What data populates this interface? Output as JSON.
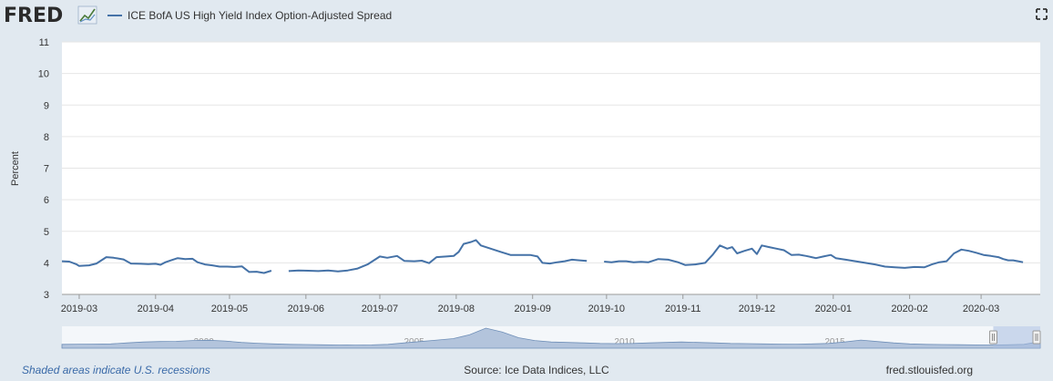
{
  "header": {
    "logo_text": "FRED",
    "legend_label": "ICE BofA US High Yield Index Option-Adjusted Spread",
    "fullscreen_icon": "fullscreen-icon"
  },
  "colors": {
    "background": "#e1e9f0",
    "plot_background": "#ffffff",
    "series_line": "#4572a7",
    "navigator_fill": "#b3c4dc",
    "navigator_selection": "#a8bde0",
    "logo_text": "#2b2b2b",
    "recession_link": "#3a6aa8"
  },
  "chart_data": {
    "type": "line",
    "title": "",
    "xlabel": "",
    "ylabel": "Percent",
    "ylim": [
      3,
      11
    ],
    "yticks": [
      "3",
      "4",
      "5",
      "6",
      "7",
      "8",
      "9",
      "10",
      "11"
    ],
    "xlim": [
      "2019-02-22",
      "2020-03-25"
    ],
    "xticks": [
      {
        "label": "2019-03",
        "date": "2019-03-01"
      },
      {
        "label": "2019-04",
        "date": "2019-04-01"
      },
      {
        "label": "2019-05",
        "date": "2019-05-01"
      },
      {
        "label": "2019-06",
        "date": "2019-06-01"
      },
      {
        "label": "2019-07",
        "date": "2019-07-01"
      },
      {
        "label": "2019-08",
        "date": "2019-08-01"
      },
      {
        "label": "2019-09",
        "date": "2019-09-01"
      },
      {
        "label": "2019-10",
        "date": "2019-10-01"
      },
      {
        "label": "2019-11",
        "date": "2019-11-01"
      },
      {
        "label": "2019-12",
        "date": "2019-12-01"
      },
      {
        "label": "2020-01",
        "date": "2020-01-01"
      },
      {
        "label": "2020-02",
        "date": "2020-02-01"
      },
      {
        "label": "2020-03",
        "date": "2020-03-01"
      }
    ],
    "grid": true,
    "legend": "top-left",
    "series": [
      {
        "name": "ICE BofA US High Yield Index Option-Adjusted Spread",
        "segments": [
          [
            {
              "x": "2019-02-22",
              "y": 4.05
            },
            {
              "x": "2019-02-25",
              "y": 4.04
            },
            {
              "x": "2019-02-28",
              "y": 3.95
            },
            {
              "x": "2019-03-01",
              "y": 3.9
            },
            {
              "x": "2019-03-05",
              "y": 3.92
            },
            {
              "x": "2019-03-08",
              "y": 3.98
            },
            {
              "x": "2019-03-12",
              "y": 4.18
            },
            {
              "x": "2019-03-15",
              "y": 4.16
            },
            {
              "x": "2019-03-19",
              "y": 4.11
            },
            {
              "x": "2019-03-22",
              "y": 3.98
            },
            {
              "x": "2019-03-26",
              "y": 3.97
            },
            {
              "x": "2019-03-29",
              "y": 3.96
            },
            {
              "x": "2019-04-01",
              "y": 3.97
            },
            {
              "x": "2019-04-03",
              "y": 3.94
            },
            {
              "x": "2019-04-05",
              "y": 4.02
            },
            {
              "x": "2019-04-08",
              "y": 4.1
            },
            {
              "x": "2019-04-10",
              "y": 4.15
            },
            {
              "x": "2019-04-13",
              "y": 4.12
            },
            {
              "x": "2019-04-16",
              "y": 4.13
            },
            {
              "x": "2019-04-18",
              "y": 4.02
            },
            {
              "x": "2019-04-21",
              "y": 3.95
            },
            {
              "x": "2019-04-24",
              "y": 3.92
            },
            {
              "x": "2019-04-27",
              "y": 3.88
            },
            {
              "x": "2019-04-30",
              "y": 3.88
            },
            {
              "x": "2019-05-03",
              "y": 3.87
            },
            {
              "x": "2019-05-06",
              "y": 3.89
            },
            {
              "x": "2019-05-09",
              "y": 3.71
            },
            {
              "x": "2019-05-12",
              "y": 3.72
            },
            {
              "x": "2019-05-15",
              "y": 3.68
            },
            {
              "x": "2019-05-18",
              "y": 3.75
            }
          ],
          [
            {
              "x": "2019-05-25",
              "y": 3.74
            },
            {
              "x": "2019-05-29",
              "y": 3.76
            },
            {
              "x": "2019-06-02",
              "y": 3.75
            },
            {
              "x": "2019-06-06",
              "y": 3.74
            },
            {
              "x": "2019-06-10",
              "y": 3.76
            },
            {
              "x": "2019-06-14",
              "y": 3.73
            },
            {
              "x": "2019-06-18",
              "y": 3.76
            },
            {
              "x": "2019-06-22",
              "y": 3.82
            },
            {
              "x": "2019-06-26",
              "y": 3.95
            },
            {
              "x": "2019-06-29",
              "y": 4.1
            },
            {
              "x": "2019-07-01",
              "y": 4.2
            },
            {
              "x": "2019-07-04",
              "y": 4.16
            },
            {
              "x": "2019-07-08",
              "y": 4.22
            },
            {
              "x": "2019-07-11",
              "y": 4.06
            },
            {
              "x": "2019-07-15",
              "y": 4.05
            },
            {
              "x": "2019-07-18",
              "y": 4.07
            },
            {
              "x": "2019-07-21",
              "y": 3.99
            },
            {
              "x": "2019-07-24",
              "y": 4.18
            },
            {
              "x": "2019-07-28",
              "y": 4.2
            },
            {
              "x": "2019-07-31",
              "y": 4.22
            },
            {
              "x": "2019-08-02",
              "y": 4.35
            },
            {
              "x": "2019-08-04",
              "y": 4.6
            },
            {
              "x": "2019-08-07",
              "y": 4.66
            },
            {
              "x": "2019-08-09",
              "y": 4.72
            },
            {
              "x": "2019-08-11",
              "y": 4.55
            },
            {
              "x": "2019-08-15",
              "y": 4.45
            },
            {
              "x": "2019-08-19",
              "y": 4.35
            },
            {
              "x": "2019-08-23",
              "y": 4.25
            },
            {
              "x": "2019-08-27",
              "y": 4.25
            },
            {
              "x": "2019-08-31",
              "y": 4.25
            },
            {
              "x": "2019-09-03",
              "y": 4.2
            },
            {
              "x": "2019-09-05",
              "y": 4.0
            },
            {
              "x": "2019-09-08",
              "y": 3.98
            },
            {
              "x": "2019-09-11",
              "y": 4.02
            },
            {
              "x": "2019-09-14",
              "y": 4.05
            },
            {
              "x": "2019-09-17",
              "y": 4.1
            },
            {
              "x": "2019-09-20",
              "y": 4.08
            },
            {
              "x": "2019-09-23",
              "y": 4.06
            }
          ],
          [
            {
              "x": "2019-09-30",
              "y": 4.04
            },
            {
              "x": "2019-10-03",
              "y": 4.02
            },
            {
              "x": "2019-10-06",
              "y": 4.05
            },
            {
              "x": "2019-10-09",
              "y": 4.05
            },
            {
              "x": "2019-10-12",
              "y": 4.02
            },
            {
              "x": "2019-10-15",
              "y": 4.03
            },
            {
              "x": "2019-10-18",
              "y": 4.02
            },
            {
              "x": "2019-10-22",
              "y": 4.12
            },
            {
              "x": "2019-10-26",
              "y": 4.1
            },
            {
              "x": "2019-10-30",
              "y": 4.02
            },
            {
              "x": "2019-11-02",
              "y": 3.93
            },
            {
              "x": "2019-11-06",
              "y": 3.95
            },
            {
              "x": "2019-11-10",
              "y": 4.0
            },
            {
              "x": "2019-11-13",
              "y": 4.25
            },
            {
              "x": "2019-11-16",
              "y": 4.55
            },
            {
              "x": "2019-11-19",
              "y": 4.45
            },
            {
              "x": "2019-11-21",
              "y": 4.5
            },
            {
              "x": "2019-11-23",
              "y": 4.3
            },
            {
              "x": "2019-11-26",
              "y": 4.38
            },
            {
              "x": "2019-11-29",
              "y": 4.45
            },
            {
              "x": "2019-12-01",
              "y": 4.28
            },
            {
              "x": "2019-12-03",
              "y": 4.55
            },
            {
              "x": "2019-12-06",
              "y": 4.5
            },
            {
              "x": "2019-12-09",
              "y": 4.45
            },
            {
              "x": "2019-12-12",
              "y": 4.4
            },
            {
              "x": "2019-12-15",
              "y": 4.25
            },
            {
              "x": "2019-12-18",
              "y": 4.26
            },
            {
              "x": "2019-12-21",
              "y": 4.22
            },
            {
              "x": "2019-12-25",
              "y": 4.15
            },
            {
              "x": "2019-12-28",
              "y": 4.2
            },
            {
              "x": "2019-12-31",
              "y": 4.25
            },
            {
              "x": "2020-01-02",
              "y": 4.15
            },
            {
              "x": "2020-01-06",
              "y": 4.1
            },
            {
              "x": "2020-01-10",
              "y": 4.05
            },
            {
              "x": "2020-01-14",
              "y": 4.0
            },
            {
              "x": "2020-01-18",
              "y": 3.95
            },
            {
              "x": "2020-01-22",
              "y": 3.88
            },
            {
              "x": "2020-01-26",
              "y": 3.86
            },
            {
              "x": "2020-01-30",
              "y": 3.84
            },
            {
              "x": "2020-02-03",
              "y": 3.87
            },
            {
              "x": "2020-02-07",
              "y": 3.86
            },
            {
              "x": "2020-02-10",
              "y": 3.95
            },
            {
              "x": "2020-02-13",
              "y": 4.02
            },
            {
              "x": "2020-02-16",
              "y": 4.05
            },
            {
              "x": "2020-02-19",
              "y": 4.3
            },
            {
              "x": "2020-02-22",
              "y": 4.42
            },
            {
              "x": "2020-02-25",
              "y": 4.38
            },
            {
              "x": "2020-02-28",
              "y": 4.32
            },
            {
              "x": "2020-03-02",
              "y": 4.25
            },
            {
              "x": "2020-03-05",
              "y": 4.22
            },
            {
              "x": "2020-03-08",
              "y": 4.18
            },
            {
              "x": "2020-03-10",
              "y": 4.12
            },
            {
              "x": "2020-03-12",
              "y": 4.08
            },
            {
              "x": "2020-03-14",
              "y": 4.08
            },
            {
              "x": "2020-03-16",
              "y": 4.05
            },
            {
              "x": "2020-03-18",
              "y": 4.02
            }
          ]
        ]
      }
    ]
  },
  "navigator": {
    "axis_labels": [
      "2000",
      "2005",
      "2010",
      "2015"
    ],
    "profile": [
      4.0,
      4.2,
      4.3,
      4.5,
      5.5,
      6.5,
      7.0,
      7.2,
      8.0,
      8.3,
      7.5,
      6.0,
      5.2,
      4.5,
      4.0,
      3.8,
      3.5,
      3.3,
      3.2,
      3.4,
      4.0,
      5.5,
      7.0,
      8.5,
      10.0,
      14.0,
      21.0,
      17.0,
      11.0,
      8.0,
      6.5,
      6.0,
      5.5,
      5.0,
      4.8,
      5.0,
      5.5,
      6.0,
      6.5,
      6.0,
      5.5,
      5.0,
      4.8,
      4.5,
      4.3,
      4.2,
      4.5,
      5.0,
      6.5,
      8.5,
      7.0,
      5.5,
      4.5,
      4.0,
      3.8,
      3.6,
      3.4,
      3.3,
      3.5,
      4.0,
      7.0
    ],
    "selection_start": 0.952,
    "selection_end": 1.0
  },
  "footer": {
    "recession_note": "Shaded areas indicate U.S. recessions",
    "source": "Source: Ice Data Indices, LLC",
    "site": "fred.stlouisfed.org"
  }
}
